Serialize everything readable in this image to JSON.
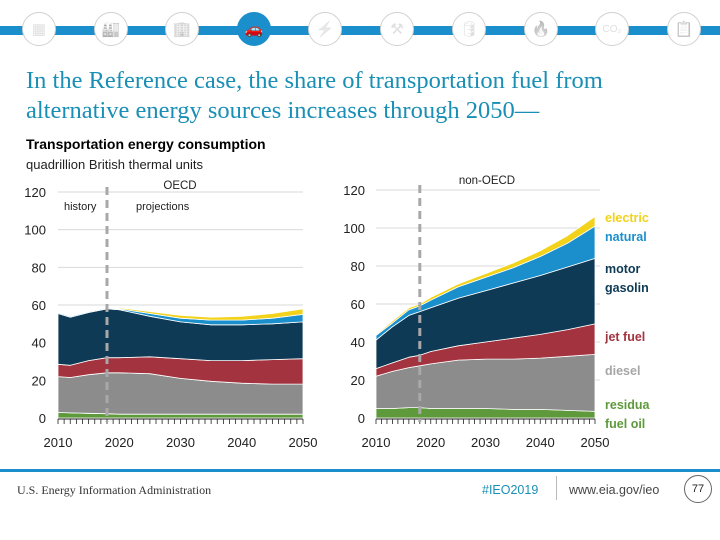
{
  "nav": {
    "icons": [
      {
        "name": "all-sectors-icon",
        "glyph": "▦",
        "active": false
      },
      {
        "name": "industrial-icon",
        "glyph": "🏭",
        "active": false
      },
      {
        "name": "buildings-icon",
        "glyph": "🏢",
        "active": false
      },
      {
        "name": "transportation-car-icon",
        "glyph": "🚗",
        "active": true
      },
      {
        "name": "electricity-icon",
        "glyph": "⚡",
        "active": false
      },
      {
        "name": "coal-mining-icon",
        "glyph": "⚒",
        "active": false
      },
      {
        "name": "petroleum-barrel-icon",
        "glyph": "🛢",
        "active": false
      },
      {
        "name": "natural-gas-flame-icon",
        "glyph": "🔥",
        "active": false
      },
      {
        "name": "co2-emissions-icon",
        "glyph": "CO₂",
        "active": false
      },
      {
        "name": "document-icon",
        "glyph": "📋",
        "active": false
      }
    ]
  },
  "title": "In the Reference case, the share of transportation fuel from alternative energy sources increases through 2050—",
  "chart_title": "Transportation energy consumption",
  "chart_subtitle": "quadrillion British thermal units",
  "colors": {
    "residual": "#5e9a3b",
    "diesel": "#8c8c8c",
    "jet": "#a3343f",
    "gasoline": "#0e3a56",
    "natural_gas": "#1a8fcc",
    "electricity": "#f2d21a",
    "divider": "#a8a8a8",
    "grid": "#d9d9d9"
  },
  "legend": [
    {
      "key": "electricity",
      "label": "electric",
      "color": "#f2d21a"
    },
    {
      "key": "natural_gas",
      "label": "natural",
      "color": "#1a8fcc"
    },
    {
      "key": "gasoline",
      "label": "motor\ngasolin",
      "color": "#0e3a56"
    },
    {
      "key": "jet",
      "label": "jet fuel",
      "color": "#a3343f"
    },
    {
      "key": "diesel",
      "label": "diesel",
      "color": "#a6a6a6"
    },
    {
      "key": "residual",
      "label": "residua\nfuel oil",
      "color": "#5e9a3b"
    }
  ],
  "chart_data": [
    {
      "type": "area",
      "stacked": true,
      "title": "OECD",
      "annotations": [
        "history",
        "projections"
      ],
      "history_divider_year": 2018,
      "xlabel": "",
      "ylabel": "quadrillion British thermal units",
      "xlim": [
        2010,
        2050
      ],
      "ylim": [
        0,
        120
      ],
      "xticks": [
        "2010",
        "2020",
        "2030",
        "2040",
        "2050"
      ],
      "yticks": [
        "0",
        "20",
        "40",
        "60",
        "80",
        "100",
        "120"
      ],
      "grid": true,
      "x": [
        2010,
        2012,
        2015,
        2018,
        2020,
        2025,
        2030,
        2035,
        2040,
        2045,
        2050
      ],
      "series": [
        {
          "name": "residual fuel oil",
          "key": "residual",
          "values": [
            3,
            2.7,
            2.5,
            2.3,
            2,
            2,
            2,
            2,
            2,
            2,
            2
          ]
        },
        {
          "name": "diesel",
          "key": "diesel",
          "values": [
            19,
            18.8,
            20.5,
            21.7,
            22,
            21.5,
            19,
            17.5,
            16.5,
            16,
            16
          ]
        },
        {
          "name": "jet fuel",
          "key": "jet",
          "values": [
            6.5,
            6.5,
            7.5,
            8,
            8,
            9,
            10.5,
            11,
            12,
            13,
            13.5
          ]
        },
        {
          "name": "motor gasoline",
          "key": "gasoline",
          "values": [
            27,
            25.5,
            25.5,
            26,
            25.5,
            21.5,
            19.5,
            19,
            19,
            19,
            19.5
          ]
        },
        {
          "name": "natural gas",
          "key": "natural_gas",
          "values": [
            0.5,
            0.5,
            0.5,
            0.5,
            0.5,
            1.5,
            2,
            2.5,
            2.5,
            3,
            4
          ]
        },
        {
          "name": "electricity",
          "key": "electricity",
          "values": [
            0.2,
            0.2,
            0.3,
            0.3,
            0.5,
            1,
            1.5,
            1.5,
            2,
            2.5,
            3
          ]
        }
      ]
    },
    {
      "type": "area",
      "stacked": true,
      "title": "non-OECD",
      "history_divider_year": 2018,
      "xlabel": "",
      "ylabel": "quadrillion British thermal units",
      "xlim": [
        2010,
        2050
      ],
      "ylim": [
        0,
        120
      ],
      "xticks": [
        "2010",
        "2020",
        "2030",
        "2040",
        "2050"
      ],
      "yticks": [
        "0",
        "20",
        "40",
        "60",
        "80",
        "100",
        "120"
      ],
      "grid": true,
      "x": [
        2010,
        2013,
        2016,
        2018,
        2020,
        2025,
        2030,
        2035,
        2040,
        2045,
        2050
      ],
      "series": [
        {
          "name": "residual fuel oil",
          "key": "residual",
          "values": [
            5,
            5,
            5.5,
            5.5,
            5,
            5,
            5,
            4.5,
            4.5,
            4,
            3.5
          ]
        },
        {
          "name": "diesel",
          "key": "diesel",
          "values": [
            17,
            19.5,
            21,
            22,
            23.5,
            25.5,
            26,
            26.5,
            27,
            28.5,
            30
          ]
        },
        {
          "name": "jet fuel",
          "key": "jet",
          "values": [
            4,
            4.5,
            5.5,
            5.5,
            6.5,
            7.5,
            9,
            11,
            12.5,
            14,
            16
          ]
        },
        {
          "name": "motor gasoline",
          "key": "gasoline",
          "values": [
            15,
            19,
            22,
            23,
            23,
            25,
            27,
            29,
            31,
            33,
            34.5
          ]
        },
        {
          "name": "natural gas",
          "key": "natural_gas",
          "values": [
            2.5,
            2,
            3,
            3,
            4,
            6,
            7,
            8,
            10,
            12.5,
            17
          ]
        },
        {
          "name": "electricity",
          "key": "electricity",
          "values": [
            0.5,
            1,
            1,
            1,
            1.5,
            1.5,
            2,
            2.5,
            3,
            4,
            5
          ]
        }
      ]
    }
  ],
  "footer": {
    "agency": "U.S. Energy Information Administration",
    "hashtag": "#IEO2019",
    "url": "www.eia.gov/ieo",
    "page_number": "77"
  }
}
